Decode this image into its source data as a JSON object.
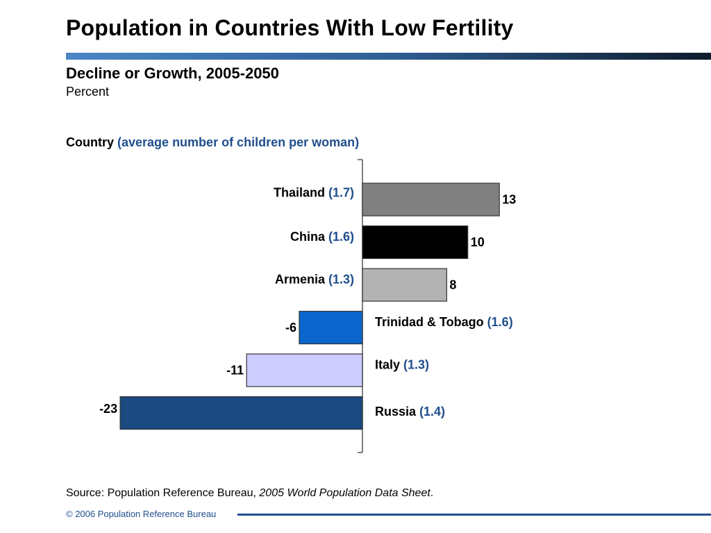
{
  "slide": {
    "title": "Population in Countries With Low Fertility",
    "subtitle": "Decline or Growth, 2005-2050",
    "unit": "Percent",
    "legend_header_main": "Country",
    "legend_header_note": "(average number of children per woman)",
    "source_prefix": "Source: Population Reference Bureau, ",
    "source_title": "2005 World Population Data Sheet",
    "source_suffix": ".",
    "footer": "© 2006 Population Reference Bureau"
  },
  "chart_data": {
    "type": "bar",
    "orientation": "horizontal",
    "title": "Decline or Growth, 2005-2050",
    "ylabel": "Percent",
    "categories": [
      "Thailand",
      "China",
      "Armenia",
      "Trinidad & Tobago",
      "Italy",
      "Russia"
    ],
    "fertility": [
      "(1.7)",
      "(1.6)",
      "(1.3)",
      "(1.6)",
      "(1.3)",
      "(1.4)"
    ],
    "values": [
      13,
      10,
      8,
      -6,
      -11,
      -23
    ],
    "bar_colors": [
      "#808080",
      "#000000",
      "#b3b3b3",
      "#0a66cc",
      "#ccccff",
      "#1a4a80"
    ],
    "xlim": [
      -23,
      13
    ],
    "grid": false
  },
  "colors": {
    "accent_blue": "#1f4e8c"
  }
}
